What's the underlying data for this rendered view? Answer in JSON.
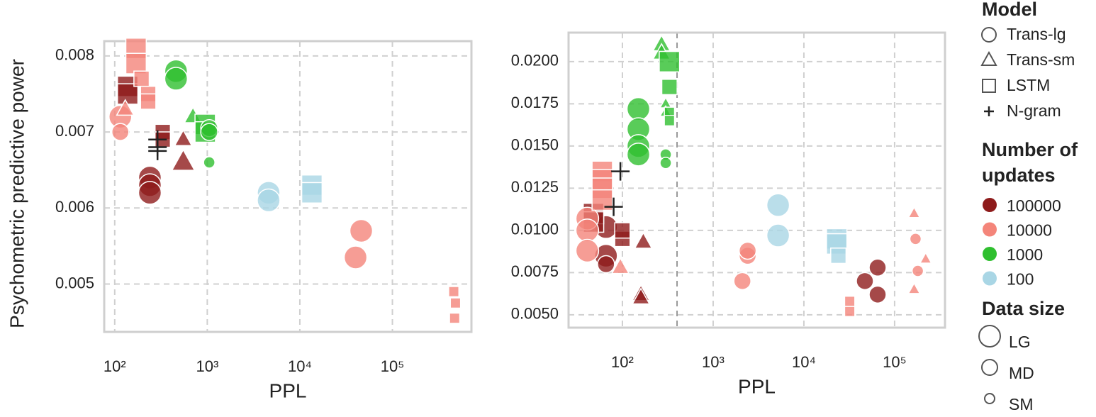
{
  "chart_data": [
    {
      "type": "scatter",
      "y_label": "Psychometric predictive power",
      "x_label": "PPL",
      "xscale": "log",
      "grid": true,
      "xlim": [
        77,
        714000
      ],
      "ylim": [
        0.00437,
        0.008195
      ],
      "xticks": [
        {
          "value": 100,
          "label": "10²"
        },
        {
          "value": 1000,
          "label": "10³"
        },
        {
          "value": 10000,
          "label": "10⁴"
        },
        {
          "value": 100000,
          "label": "10⁵"
        }
      ],
      "yticks": [
        0.005,
        0.006,
        0.007,
        0.008
      ],
      "series": [
        {
          "name": "100000",
          "color": "#8e1b1b",
          "x": [
            138,
            138,
            330,
            330,
            240,
            240,
            240,
            550,
            550
          ],
          "values": [
            0.0076,
            0.0075,
            0.007,
            0.0069,
            0.0064,
            0.0063,
            0.0062,
            0.0069,
            0.0066
          ],
          "models": [
            "LSTM",
            "LSTM",
            "LSTM",
            "LSTM",
            "Trans-lg",
            "Trans-lg",
            "Trans-lg",
            "Trans-sm",
            "Trans-sm"
          ],
          "sizes": [
            "LG",
            "LG",
            "MD",
            "MD",
            "LG",
            "LG",
            "LG",
            "MD",
            "LG"
          ]
        },
        {
          "name": "10000",
          "color": "#f4857a",
          "x": [
            170,
            170,
            195,
            230,
            230,
            115,
            115,
            130,
            46000,
            40000,
            460000,
            480000,
            470000
          ],
          "values": [
            0.0081,
            0.0079,
            0.0077,
            0.0075,
            0.0074,
            0.0072,
            0.007,
            0.0073,
            0.0057,
            0.00535,
            0.0049,
            0.00475,
            0.00455
          ],
          "models": [
            "LSTM",
            "LSTM",
            "LSTM",
            "LSTM",
            "LSTM",
            "Trans-lg",
            "Trans-lg",
            "Trans-sm",
            "Trans-lg",
            "Trans-lg",
            "LSTM",
            "LSTM",
            "LSTM"
          ],
          "sizes": [
            "LG",
            "LG",
            "MD",
            "MD",
            "MD",
            "LG",
            "MD",
            "MD",
            "LG",
            "LG",
            "SM",
            "SM",
            "SM"
          ]
        },
        {
          "name": "1000",
          "color": "#2fbf2f",
          "x": [
            460,
            460,
            700,
            950,
            950,
            1050,
            1050,
            1050
          ],
          "values": [
            0.0078,
            0.0077,
            0.0072,
            0.0071,
            0.007,
            0.00705,
            0.007,
            0.0066
          ],
          "models": [
            "Trans-lg",
            "Trans-lg",
            "Trans-sm",
            "LSTM",
            "LSTM",
            "Trans-lg",
            "Trans-lg",
            "Trans-lg"
          ],
          "sizes": [
            "LG",
            "LG",
            "MD",
            "LG",
            "LG",
            "MD",
            "MD",
            "SM"
          ]
        },
        {
          "name": "100",
          "color": "#a9d6e5",
          "x": [
            4600,
            4600,
            13500,
            13500
          ],
          "values": [
            0.0062,
            0.0061,
            0.0063,
            0.0062
          ],
          "models": [
            "Trans-lg",
            "Trans-lg",
            "LSTM",
            "LSTM"
          ],
          "sizes": [
            "LG",
            "LG",
            "LG",
            "LG"
          ]
        }
      ],
      "ngram": {
        "color": "#222222",
        "x": [
          290,
          290,
          290
        ],
        "values": [
          0.0069,
          0.00675,
          0.0068
        ]
      }
    },
    {
      "type": "scatter",
      "x_label": "PPL",
      "xscale": "log",
      "grid": true,
      "vline": 400,
      "xlim": [
        25.5,
        359000
      ],
      "ylim": [
        0.00424,
        0.02172
      ],
      "xticks": [
        {
          "value": 100,
          "label": "10²"
        },
        {
          "value": 1000,
          "label": "10³"
        },
        {
          "value": 10000,
          "label": "10⁴"
        },
        {
          "value": 100000,
          "label": "10⁵"
        }
      ],
      "yticks": [
        {
          "value": 0.005,
          "label": "0.0050"
        },
        {
          "value": 0.0075,
          "label": "0.0075"
        },
        {
          "value": 0.01,
          "label": "0.0100"
        },
        {
          "value": 0.0125,
          "label": "0.0125"
        },
        {
          "value": 0.015,
          "label": "0.0150"
        },
        {
          "value": 0.0175,
          "label": "0.0175"
        },
        {
          "value": 0.02,
          "label": "0.0200"
        }
      ],
      "series": [
        {
          "name": "100000",
          "color": "#8e1b1b",
          "x": [
            66,
            66,
            66,
            48,
            48,
            100,
            100,
            170,
            160,
            160,
            47000,
            65000,
            65000
          ],
          "values": [
            0.0102,
            0.0085,
            0.008,
            0.011,
            0.0105,
            0.0095,
            0.01,
            0.0093,
            0.0062,
            0.006,
            0.007,
            0.0078,
            0.0062
          ],
          "models": [
            "Trans-lg",
            "Trans-lg",
            "Trans-lg",
            "LSTM",
            "LSTM",
            "LSTM",
            "LSTM",
            "Trans-sm",
            "Trans-sm",
            "Trans-sm",
            "Trans-lg",
            "Trans-lg",
            "Trans-lg"
          ],
          "sizes": [
            "LG",
            "LG",
            "MD",
            "LG",
            "LG",
            "MD",
            "MD",
            "MD",
            "MD",
            "MD",
            "MD",
            "MD",
            "MD"
          ]
        },
        {
          "name": "10000",
          "color": "#f4857a",
          "x": [
            41,
            41,
            41,
            60,
            60,
            60,
            60,
            95,
            2100,
            2400,
            2400,
            32000,
            32000,
            164000,
            164000,
            220000,
            170000,
            180000
          ],
          "values": [
            0.0107,
            0.01,
            0.0088,
            0.0135,
            0.013,
            0.0125,
            0.0118,
            0.0078,
            0.007,
            0.0085,
            0.0088,
            0.0052,
            0.0058,
            0.011,
            0.0065,
            0.0083,
            0.0095,
            0.0076
          ],
          "models": [
            "Trans-lg",
            "Trans-lg",
            "Trans-lg",
            "LSTM",
            "LSTM",
            "LSTM",
            "LSTM",
            "Trans-sm",
            "Trans-lg",
            "Trans-lg",
            "Trans-lg",
            "LSTM",
            "LSTM",
            "Trans-sm",
            "Trans-sm",
            "Trans-sm",
            "Trans-lg",
            "Trans-lg"
          ],
          "sizes": [
            "LG",
            "LG",
            "LG",
            "LG",
            "LG",
            "LG",
            "LG",
            "MD",
            "MD",
            "MD",
            "MD",
            "SM",
            "SM",
            "SM",
            "SM",
            "SM",
            "SM",
            "SM"
          ]
        },
        {
          "name": "1000",
          "color": "#2fbf2f",
          "x": [
            150,
            150,
            150,
            150,
            300,
            300,
            270,
            270,
            300,
            300,
            330,
            330,
            330,
            330
          ],
          "values": [
            0.0172,
            0.016,
            0.015,
            0.0145,
            0.0145,
            0.014,
            0.021,
            0.0205,
            0.0175,
            0.017,
            0.02,
            0.0185,
            0.017,
            0.0165
          ],
          "models": [
            "Trans-lg",
            "Trans-lg",
            "Trans-lg",
            "Trans-lg",
            "Trans-lg",
            "Trans-lg",
            "Trans-sm",
            "Trans-sm",
            "Trans-sm",
            "Trans-sm",
            "LSTM",
            "LSTM",
            "LSTM",
            "LSTM"
          ],
          "sizes": [
            "LG",
            "LG",
            "LG",
            "LG",
            "SM",
            "SM",
            "MD",
            "MD",
            "SM",
            "SM",
            "LG",
            "MD",
            "SM",
            "SM"
          ]
        },
        {
          "name": "100",
          "color": "#a9d6e5",
          "x": [
            5200,
            5200,
            23000,
            23000,
            24000
          ],
          "values": [
            0.0115,
            0.0097,
            0.0095,
            0.0092,
            0.0085
          ],
          "models": [
            "Trans-lg",
            "Trans-lg",
            "LSTM",
            "LSTM",
            "LSTM"
          ],
          "sizes": [
            "LG",
            "LG",
            "LG",
            "LG",
            "MD"
          ]
        }
      ],
      "ngram": {
        "color": "#222222",
        "x": [
          95,
          80
        ],
        "values": [
          0.0135,
          0.0114
        ]
      }
    }
  ],
  "legend": {
    "model_title": "Model",
    "models": [
      "Trans-lg",
      "Trans-sm",
      "LSTM",
      "N-gram"
    ],
    "updates_title": "Number of updates",
    "size_title": "Data size",
    "sizes": [
      "LG",
      "MD",
      "SM"
    ]
  }
}
